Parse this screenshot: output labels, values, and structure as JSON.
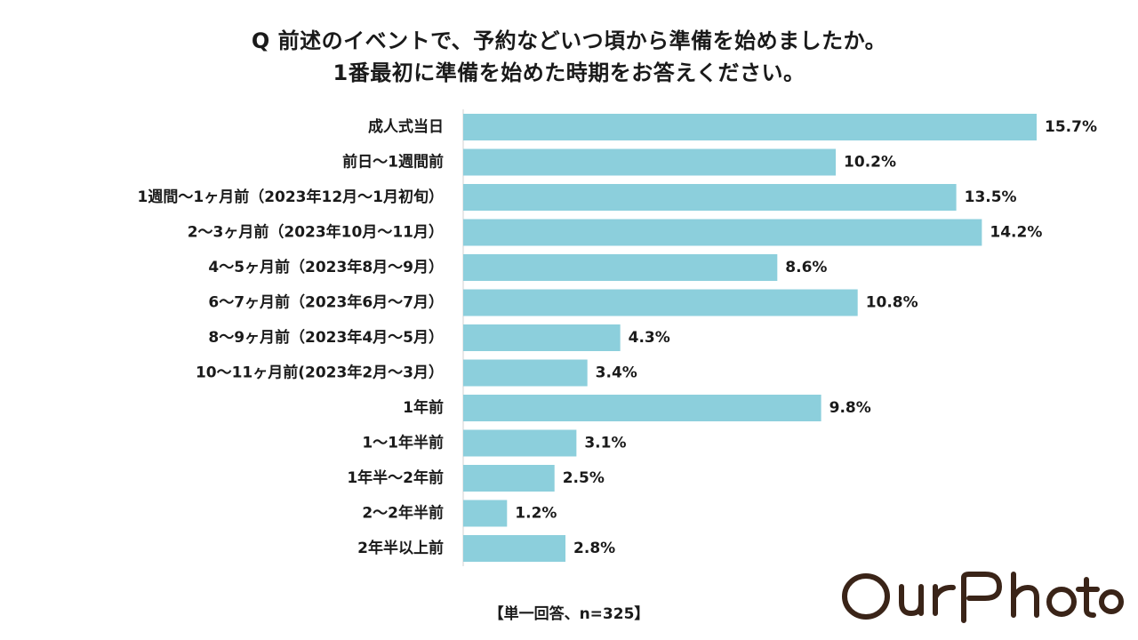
{
  "title": {
    "line1": "Q 前述のイベントで、予約などいつ頃から準備を始めましたか。",
    "line2": "1番最初に準備を始めた時期をお答えください。"
  },
  "chart_data": {
    "type": "bar",
    "orientation": "horizontal",
    "categories": [
      "成人式当日",
      "前日〜1週間前",
      "1週間〜1ヶ月前（2023年12月〜1月初旬）",
      "2〜3ヶ月前（2023年10月〜11月）",
      "4〜5ヶ月前（2023年8月〜9月）",
      "6〜7ヶ月前（2023年6月〜7月）",
      "8〜9ヶ月前（2023年4月〜5月）",
      "10〜11ヶ月前(2023年2月〜3月）",
      "1年前",
      "1〜1年半前",
      "1年半〜2年前",
      "2〜2年半前",
      "2年半以上前"
    ],
    "values": [
      15.7,
      10.2,
      13.5,
      14.2,
      8.6,
      10.8,
      4.3,
      3.4,
      9.8,
      3.1,
      2.5,
      1.2,
      2.8
    ],
    "value_labels": [
      "15.7%",
      "10.2%",
      "13.5%",
      "14.2%",
      "8.6%",
      "10.8%",
      "4.3%",
      "3.4%",
      "9.8%",
      "3.1%",
      "2.5%",
      "1.2%",
      "2.8%"
    ],
    "unit": "%",
    "xlim": [
      0,
      15.7
    ],
    "bar_color": "#8ccfdc",
    "axis_color": "#d0d0d0",
    "grid": false,
    "legend": "none"
  },
  "footnote": "【単一回答、n=325】",
  "logo": {
    "text": "OurPhoto",
    "color": "#3a2418"
  }
}
